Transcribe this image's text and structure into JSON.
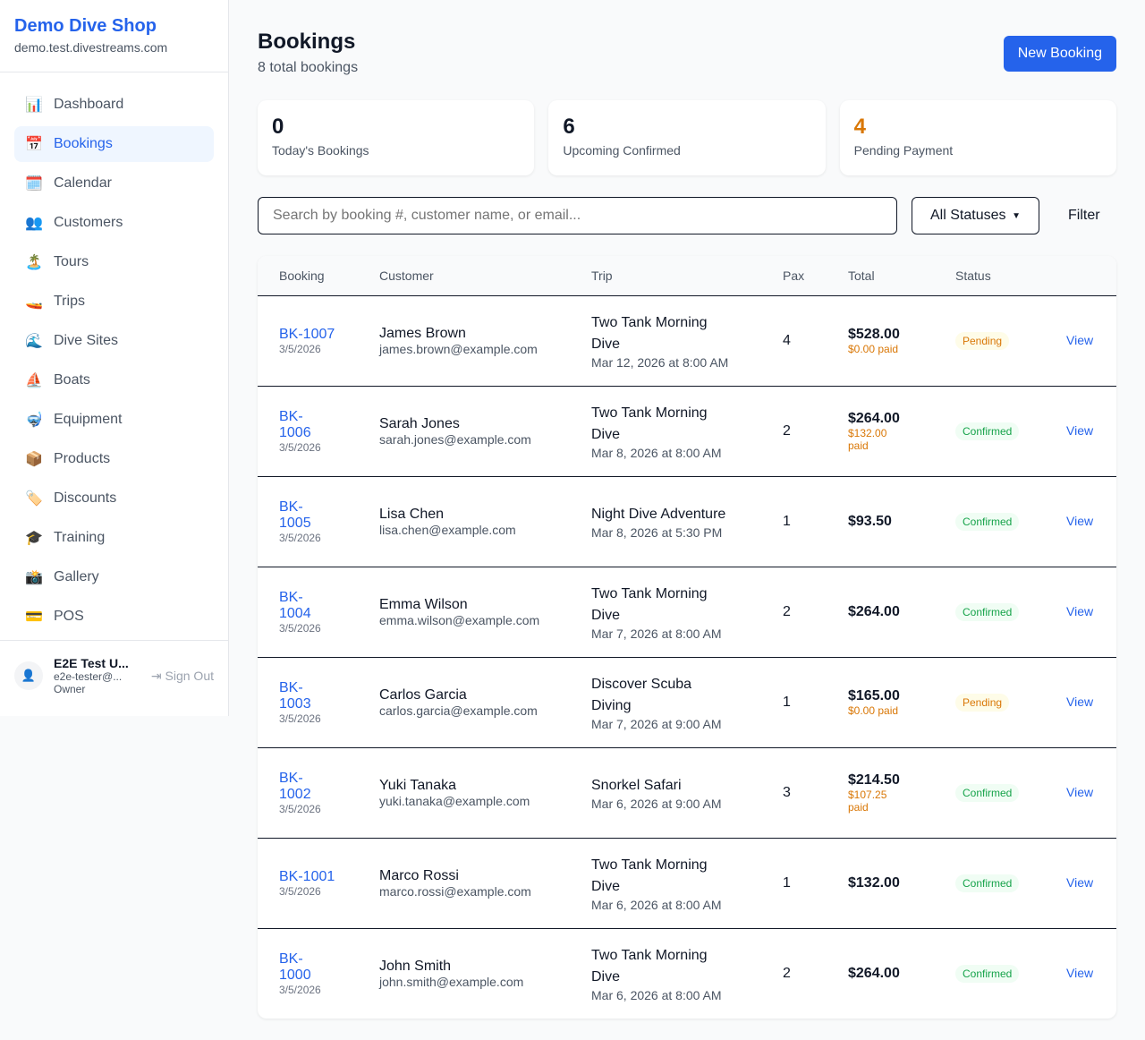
{
  "sidebar": {
    "shop_name": "Demo Dive Shop",
    "domain": "demo.test.divestreams.com",
    "items": [
      {
        "label": "Dashboard",
        "icon": "📊"
      },
      {
        "label": "Bookings",
        "icon": "📅",
        "active": true
      },
      {
        "label": "Calendar",
        "icon": "🗓️"
      },
      {
        "label": "Customers",
        "icon": "👥"
      },
      {
        "label": "Tours",
        "icon": "🏝️"
      },
      {
        "label": "Trips",
        "icon": "🚤"
      },
      {
        "label": "Dive Sites",
        "icon": "🌊"
      },
      {
        "label": "Boats",
        "icon": "⛵"
      },
      {
        "label": "Equipment",
        "icon": "🤿"
      },
      {
        "label": "Products",
        "icon": "📦"
      },
      {
        "label": "Discounts",
        "icon": "🏷️"
      },
      {
        "label": "Training",
        "icon": "🎓"
      },
      {
        "label": "Gallery",
        "icon": "📸"
      },
      {
        "label": "POS",
        "icon": "💳"
      }
    ],
    "user": {
      "name": "E2E Test U...",
      "email": "e2e-tester@...",
      "role": "Owner",
      "sign_out": "Sign Out"
    }
  },
  "header": {
    "title": "Bookings",
    "subtitle": "8 total bookings",
    "new_button": "New Booking"
  },
  "stats": [
    {
      "value": "0",
      "label": "Today's Bookings",
      "color": "#111827"
    },
    {
      "value": "6",
      "label": "Upcoming Confirmed",
      "color": "#111827"
    },
    {
      "value": "4",
      "label": "Pending Payment",
      "color": "#d97706"
    }
  ],
  "filters": {
    "search_placeholder": "Search by booking #, customer name, or email...",
    "status_selected": "All Statuses",
    "filter_label": "Filter"
  },
  "table": {
    "headers": [
      "Booking",
      "Customer",
      "Trip",
      "Pax",
      "Total",
      "Status",
      ""
    ],
    "view_label": "View",
    "rows": [
      {
        "id": "BK-1007",
        "date": "3/5/2026",
        "name": "James Brown",
        "email": "james.brown@example.com",
        "trip": "Two Tank Morning Dive",
        "when": "Mar 12, 2026 at 8:00 AM",
        "pax": "4",
        "total": "$528.00",
        "paid": "$0.00 paid",
        "status": "Pending"
      },
      {
        "id": "BK-1006",
        "date": "3/5/2026",
        "name": "Sarah Jones",
        "email": "sarah.jones@example.com",
        "trip": "Two Tank Morning Dive",
        "when": "Mar 8, 2026 at 8:00 AM",
        "pax": "2",
        "total": "$264.00",
        "paid": "$132.00 paid",
        "status": "Confirmed"
      },
      {
        "id": "BK-1005",
        "date": "3/5/2026",
        "name": "Lisa Chen",
        "email": "lisa.chen@example.com",
        "trip": "Night Dive Adventure",
        "when": "Mar 8, 2026 at 5:30 PM",
        "pax": "1",
        "total": "$93.50",
        "paid": "",
        "status": "Confirmed"
      },
      {
        "id": "BK-1004",
        "date": "3/5/2026",
        "name": "Emma Wilson",
        "email": "emma.wilson@example.com",
        "trip": "Two Tank Morning Dive",
        "when": "Mar 7, 2026 at 8:00 AM",
        "pax": "2",
        "total": "$264.00",
        "paid": "",
        "status": "Confirmed"
      },
      {
        "id": "BK-1003",
        "date": "3/5/2026",
        "name": "Carlos Garcia",
        "email": "carlos.garcia@example.com",
        "trip": "Discover Scuba Diving",
        "when": "Mar 7, 2026 at 9:00 AM",
        "pax": "1",
        "total": "$165.00",
        "paid": "$0.00 paid",
        "status": "Pending"
      },
      {
        "id": "BK-1002",
        "date": "3/5/2026",
        "name": "Yuki Tanaka",
        "email": "yuki.tanaka@example.com",
        "trip": "Snorkel Safari",
        "when": "Mar 6, 2026 at 9:00 AM",
        "pax": "3",
        "total": "$214.50",
        "paid": "$107.25 paid",
        "status": "Confirmed"
      },
      {
        "id": "BK-1001",
        "date": "3/5/2026",
        "name": "Marco Rossi",
        "email": "marco.rossi@example.com",
        "trip": "Two Tank Morning Dive",
        "when": "Mar 6, 2026 at 8:00 AM",
        "pax": "1",
        "total": "$132.00",
        "paid": "",
        "status": "Confirmed"
      },
      {
        "id": "BK-1000",
        "date": "3/5/2026",
        "name": "John Smith",
        "email": "john.smith@example.com",
        "trip": "Two Tank Morning Dive",
        "when": "Mar 6, 2026 at 8:00 AM",
        "pax": "2",
        "total": "$264.00",
        "paid": "",
        "status": "Confirmed"
      }
    ]
  }
}
